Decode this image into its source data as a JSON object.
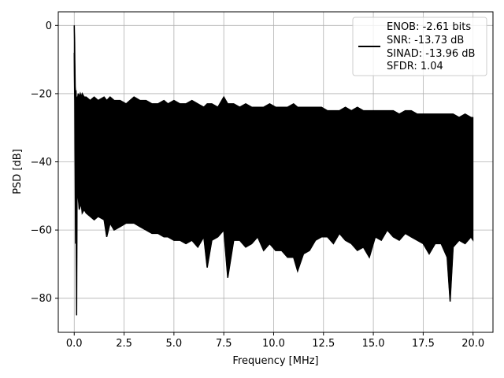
{
  "chart_data": {
    "type": "line",
    "title": "",
    "xlabel": "Frequency [MHz]",
    "ylabel": "PSD [dB]",
    "xlim": [
      -0.8,
      21.0
    ],
    "ylim": [
      -90,
      4
    ],
    "xticks": [
      0.0,
      2.5,
      5.0,
      7.5,
      10.0,
      12.5,
      15.0,
      17.5,
      20.0
    ],
    "xtick_labels": [
      "0.0",
      "2.5",
      "5.0",
      "7.5",
      "10.0",
      "12.5",
      "15.0",
      "17.5",
      "20.0"
    ],
    "yticks": [
      0,
      -20,
      -40,
      -60,
      -80
    ],
    "ytick_labels": [
      "0",
      "−20",
      "−40",
      "−60",
      "−80"
    ],
    "grid": true,
    "legend_position": "top-right",
    "legend_lines": [
      "ENOB: -2.61 bits",
      "SNR: -13.73 dB",
      "SINAD: -13.96 dB",
      "SFDR: 1.04"
    ],
    "series": [
      {
        "color": "#000000",
        "x": [
          0.0,
          0.01,
          0.02,
          0.03,
          0.05,
          0.07,
          0.09,
          0.1,
          0.12,
          0.14,
          0.16,
          0.18,
          0.2,
          0.25,
          0.3,
          0.35,
          0.4,
          0.5,
          0.6,
          0.8,
          1.0,
          1.2,
          1.5,
          1.63,
          1.8,
          2.0,
          2.3,
          2.6,
          3.0,
          3.3,
          3.6,
          3.9,
          4.2,
          4.5,
          4.7,
          5.0,
          5.3,
          5.6,
          5.9,
          6.2,
          6.5,
          6.67,
          6.9,
          7.2,
          7.5,
          7.7,
          8.0,
          8.3,
          8.6,
          8.9,
          9.2,
          9.5,
          9.8,
          10.1,
          10.4,
          10.7,
          11.0,
          11.2,
          11.5,
          11.8,
          12.1,
          12.4,
          12.7,
          13.0,
          13.3,
          13.6,
          13.9,
          14.2,
          14.5,
          14.8,
          15.1,
          15.4,
          15.7,
          16.0,
          16.3,
          16.6,
          16.9,
          17.2,
          17.5,
          17.8,
          18.1,
          18.4,
          18.7,
          18.85,
          19.0,
          19.3,
          19.6,
          19.9,
          20.0
        ],
        "upper": [
          0,
          -2,
          -5,
          -10,
          -18,
          -20,
          -19,
          -22,
          -23,
          -22,
          -21,
          -21,
          -20,
          -21,
          -20,
          -21,
          -20,
          -21,
          -21,
          -22,
          -21,
          -22,
          -21,
          -22,
          -21,
          -22,
          -22,
          -23,
          -21,
          -22,
          -22,
          -23,
          -23,
          -22,
          -23,
          -22,
          -23,
          -23,
          -22,
          -23,
          -24,
          -23,
          -23,
          -24,
          -21,
          -23,
          -23,
          -24,
          -23,
          -24,
          -24,
          -24,
          -23,
          -24,
          -24,
          -24,
          -23,
          -24,
          -24,
          -24,
          -24,
          -24,
          -25,
          -25,
          -25,
          -24,
          -25,
          -24,
          -25,
          -25,
          -25,
          -25,
          -25,
          -25,
          -26,
          -25,
          -25,
          -26,
          -26,
          -26,
          -26,
          -26,
          -26,
          -26,
          -26,
          -27,
          -26,
          -27,
          -27
        ],
        "lower": [
          -8,
          -15,
          -20,
          -22,
          -42,
          -64,
          -48,
          -65,
          -85,
          -52,
          -48,
          -50,
          -50,
          -54,
          -53,
          -52,
          -55,
          -54,
          -55,
          -56,
          -57,
          -56,
          -57,
          -62,
          -58,
          -60,
          -59,
          -58,
          -58,
          -59,
          -60,
          -61,
          -61,
          -62,
          -62,
          -63,
          -63,
          -64,
          -63,
          -65,
          -62,
          -71,
          -63,
          -62,
          -60,
          -74,
          -63,
          -63,
          -65,
          -64,
          -62,
          -66,
          -64,
          -66,
          -66,
          -68,
          -68,
          -72,
          -67,
          -66,
          -63,
          -62,
          -62,
          -64,
          -61,
          -63,
          -64,
          -66,
          -65,
          -68,
          -62,
          -63,
          -60,
          -62,
          -63,
          -61,
          -62,
          -63,
          -64,
          -67,
          -64,
          -64,
          -68,
          -81,
          -65,
          -63,
          -64,
          -62,
          -63
        ]
      }
    ]
  }
}
